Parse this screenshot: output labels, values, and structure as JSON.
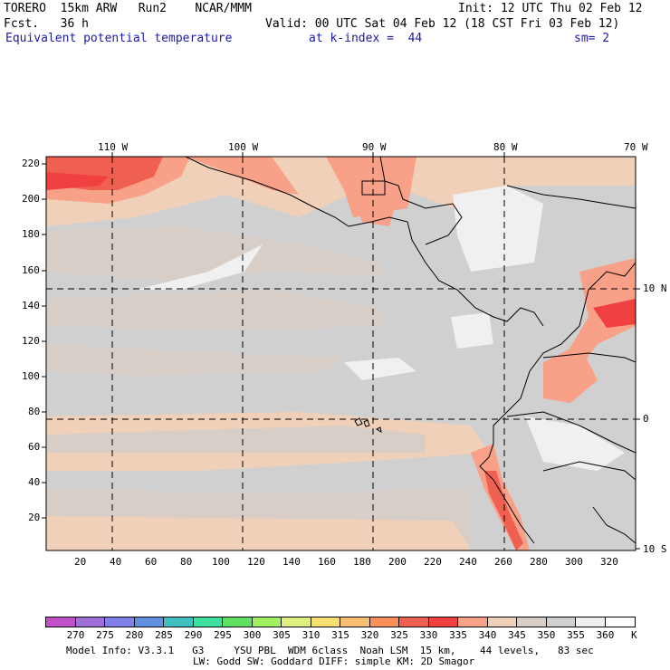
{
  "header": {
    "model": "TORERO  15km ARW   Run2    NCAR/MMM",
    "init": "Init: 12 UTC Thu 02 Feb 12",
    "fcst": "Fcst.   36 h",
    "valid": "Valid: 00 UTC Sat 04 Feb 12 (18 CST Fri 03 Feb 12)",
    "field": "Equivalent potential temperature",
    "level": "at k-index =  44",
    "smooth": "sm= 2"
  },
  "map": {
    "top_lon_labels": [
      "110 W",
      "100 W",
      "90 W",
      "80 W",
      "70 W"
    ],
    "right_lat_labels": [
      "10 N",
      "0",
      "10 S"
    ],
    "y_ticks": [
      "220",
      "200",
      "180",
      "160",
      "140",
      "120",
      "100",
      "80",
      "60",
      "40",
      "20"
    ],
    "x_ticks": [
      "20",
      "40",
      "60",
      "80",
      "100",
      "120",
      "140",
      "160",
      "180",
      "200",
      "220",
      "240",
      "260",
      "280",
      "300",
      "320"
    ]
  },
  "colorbar": {
    "labels": [
      "270",
      "275",
      "280",
      "285",
      "290",
      "295",
      "300",
      "305",
      "310",
      "315",
      "320",
      "325",
      "330",
      "335",
      "340",
      "345",
      "350",
      "355",
      "360"
    ],
    "unit": "K",
    "colors": [
      "#c050c8",
      "#a070d8",
      "#8080e8",
      "#6090e0",
      "#40c0c0",
      "#40e0a0",
      "#60e060",
      "#a0f060",
      "#e0f080",
      "#f8e070",
      "#f8c070",
      "#f89058",
      "#f06050",
      "#f04040",
      "#f8a088",
      "#f0d0b8",
      "#d8cec8",
      "#d0d0d0",
      "#f0f0f0",
      "#ffffff"
    ]
  },
  "footer": {
    "line1": "Model Info: V3.3.1   G3     YSU PBL  WDM 6class  Noah LSM  15 km,    44 levels,   83 sec",
    "line2": "LW: Godd SW: Goddard DIFF: simple KM: 2D Smagor"
  }
}
